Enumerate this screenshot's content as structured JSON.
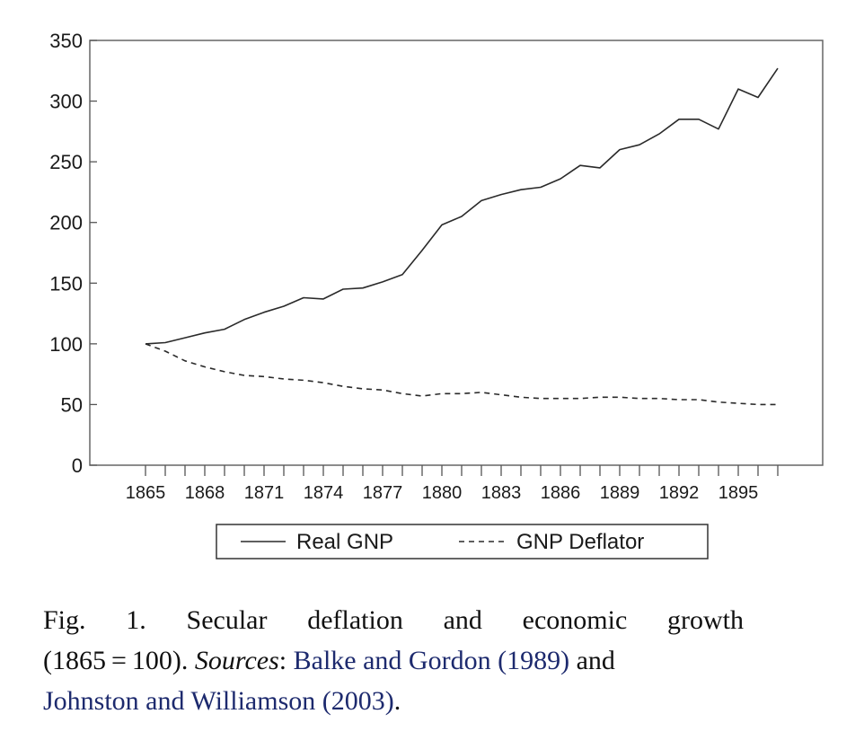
{
  "chart_data": {
    "type": "line",
    "x": [
      1865,
      1866,
      1867,
      1868,
      1869,
      1870,
      1871,
      1872,
      1873,
      1874,
      1875,
      1876,
      1877,
      1878,
      1879,
      1880,
      1881,
      1882,
      1883,
      1884,
      1885,
      1886,
      1887,
      1888,
      1889,
      1890,
      1891,
      1892,
      1893,
      1894,
      1895,
      1896,
      1897
    ],
    "x_tick_labels": [
      "1865",
      "1868",
      "1871",
      "1874",
      "1877",
      "1880",
      "1883",
      "1886",
      "1889",
      "1892",
      "1895"
    ],
    "y_tick_labels": [
      "0",
      "50",
      "100",
      "150",
      "200",
      "250",
      "300",
      "350"
    ],
    "ylim": [
      0,
      350
    ],
    "grid": false,
    "legend_position": "bottom",
    "title": "",
    "xlabel": "",
    "ylabel": "",
    "series": [
      {
        "name": "Real GNP",
        "style": "solid",
        "values": [
          100,
          101,
          105,
          109,
          112,
          120,
          126,
          131,
          138,
          137,
          145,
          146,
          151,
          157,
          177,
          198,
          205,
          218,
          223,
          227,
          229,
          236,
          247,
          245,
          260,
          264,
          273,
          285,
          285,
          277,
          310,
          303,
          327
        ]
      },
      {
        "name": "GNP Deflator",
        "style": "dashed",
        "values": [
          100,
          94,
          86,
          81,
          77,
          74,
          73,
          71,
          70,
          68,
          65,
          63,
          62,
          59,
          57,
          59,
          59,
          60,
          58,
          56,
          55,
          55,
          55,
          56,
          56,
          55,
          55,
          54,
          54,
          52,
          51,
          50,
          50
        ]
      }
    ]
  },
  "caption": {
    "line1": "Fig. 1. Secular deflation and economic growth",
    "line2_a": "(1865 = 100). ",
    "line2_sources": "Sources",
    "line2_b": ": ",
    "link1": "Balke and Gordon (1989)",
    "line2_c": " and",
    "link2": "Johnston and Williamson (2003)",
    "line3_end": "."
  },
  "colors": {
    "line": "#2a2a2a",
    "axis": "#555555",
    "link": "#1d2a6e"
  }
}
